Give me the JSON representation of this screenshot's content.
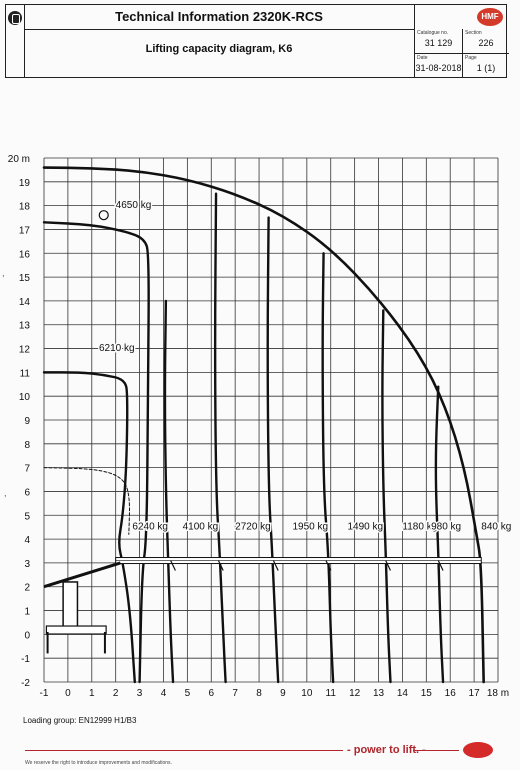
{
  "header": {
    "title": "Technical Information  2320K-RCS",
    "subtitle": "Lifting capacity diagram, K6",
    "logo": "HMF",
    "catalogue_label": "Catalogue no.",
    "catalogue_value": "31 129",
    "section_label": "Section",
    "section_value": "226",
    "date_label": "Date",
    "date_value": "31-08-2018",
    "page_label": "Page",
    "page_value": "1 (1)"
  },
  "chart_data": {
    "type": "line",
    "xlabel": "m",
    "ylabel": "m",
    "xlim": [
      -1,
      18
    ],
    "ylim": [
      -2,
      20
    ],
    "x_ticks": [
      "-1",
      "0",
      "1",
      "2",
      "3",
      "4",
      "5",
      "6",
      "7",
      "8",
      "9",
      "10",
      "11",
      "12",
      "13",
      "14",
      "15",
      "16",
      "17",
      "18 m"
    ],
    "y_ticks": [
      "-2",
      "-1",
      "0",
      "1",
      "2",
      "3",
      "4",
      "5",
      "6",
      "7",
      "8",
      "9",
      "10",
      "11",
      "12",
      "13",
      "14",
      "15",
      "16",
      "17",
      "18",
      "19",
      "20 m"
    ],
    "grid": true,
    "capacity_labels": [
      {
        "text": "6240 kg",
        "x": 2.7,
        "y": 4.4
      },
      {
        "text": "4100 kg",
        "x": 4.8,
        "y": 4.4
      },
      {
        "text": "2720 kg",
        "x": 7.0,
        "y": 4.4
      },
      {
        "text": "1950 kg",
        "x": 9.4,
        "y": 4.4
      },
      {
        "text": "1490 kg",
        "x": 11.7,
        "y": 4.4
      },
      {
        "text": "1180 kg",
        "x": 14.0,
        "y": 4.4
      },
      {
        "text": "980 kg",
        "x": 15.2,
        "y": 4.4
      },
      {
        "text": "840 kg",
        "x": 17.3,
        "y": 4.4
      },
      {
        "text": "6210 kg",
        "x": 1.3,
        "y": 11.9
      },
      {
        "text": "4650 kg",
        "x": 2.0,
        "y": 17.9
      }
    ],
    "envelope": [
      [
        -1,
        19.6
      ],
      [
        1,
        19.58
      ],
      [
        3,
        19.45
      ],
      [
        5,
        19.1
      ],
      [
        7,
        18.5
      ],
      [
        9,
        17.6
      ],
      [
        11,
        16.2
      ],
      [
        13,
        14.1
      ],
      [
        14.7,
        11.8
      ],
      [
        15.8,
        9.6
      ],
      [
        16.6,
        7.0
      ],
      [
        17.1,
        4.2
      ],
      [
        17.3,
        3.0
      ],
      [
        17.4,
        -2
      ]
    ],
    "inner_curve_large": [
      [
        -1,
        17.3
      ],
      [
        1,
        17.2
      ],
      [
        2.5,
        16.9
      ],
      [
        3.2,
        16.6
      ],
      [
        3.4,
        16.0
      ],
      [
        3.35,
        10
      ],
      [
        3.3,
        4
      ],
      [
        3.1,
        2.6
      ],
      [
        3.0,
        -2
      ]
    ],
    "inner_curve_small": [
      [
        -1,
        11.0
      ],
      [
        0.5,
        11.0
      ],
      [
        1.5,
        10.9
      ],
      [
        2.4,
        10.7
      ],
      [
        2.5,
        10.0
      ],
      [
        2.45,
        7.0
      ],
      [
        2.3,
        5.0
      ],
      [
        2.1,
        3.8
      ],
      [
        2.3,
        3.0
      ],
      [
        2.6,
        1.0
      ],
      [
        2.8,
        -2
      ]
    ],
    "outline_dashed": [
      [
        -1,
        7.0
      ],
      [
        1.2,
        6.95
      ],
      [
        2.3,
        6.6
      ],
      [
        2.6,
        5.8
      ],
      [
        2.55,
        4.2
      ]
    ],
    "capacity_lines": [
      [
        [
          6.2,
          18.5
        ],
        [
          6.15,
          12
        ],
        [
          6.2,
          6
        ],
        [
          6.35,
          3.5
        ],
        [
          6.5,
          0
        ],
        [
          6.6,
          -2
        ]
      ],
      [
        [
          8.4,
          17.5
        ],
        [
          8.35,
          12
        ],
        [
          8.4,
          6
        ],
        [
          8.55,
          3.5
        ],
        [
          8.7,
          0
        ],
        [
          8.8,
          -2
        ]
      ],
      [
        [
          10.7,
          16.0
        ],
        [
          10.65,
          12
        ],
        [
          10.7,
          6
        ],
        [
          10.9,
          3.5
        ],
        [
          11.0,
          0
        ],
        [
          11.1,
          -2
        ]
      ],
      [
        [
          13.2,
          13.6
        ],
        [
          13.15,
          10
        ],
        [
          13.2,
          6
        ],
        [
          13.3,
          3.5
        ],
        [
          13.4,
          0
        ],
        [
          13.5,
          -2
        ]
      ],
      [
        [
          15.5,
          10.4
        ],
        [
          15.4,
          8
        ],
        [
          15.4,
          6
        ],
        [
          15.5,
          3.5
        ],
        [
          15.6,
          0
        ],
        [
          15.7,
          -2
        ]
      ],
      [
        [
          4.4,
          -2
        ],
        [
          4.3,
          0
        ],
        [
          4.2,
          3
        ],
        [
          4.1,
          6
        ],
        [
          4.05,
          10
        ],
        [
          4.1,
          14
        ]
      ]
    ],
    "boom_y": 3.1
  },
  "footer": {
    "loading_group": "Loading group:  EN12999 H1/B3",
    "slogan": "- power to lift. -",
    "reserve": "We reserve the right to introduce improvements and modifications."
  }
}
